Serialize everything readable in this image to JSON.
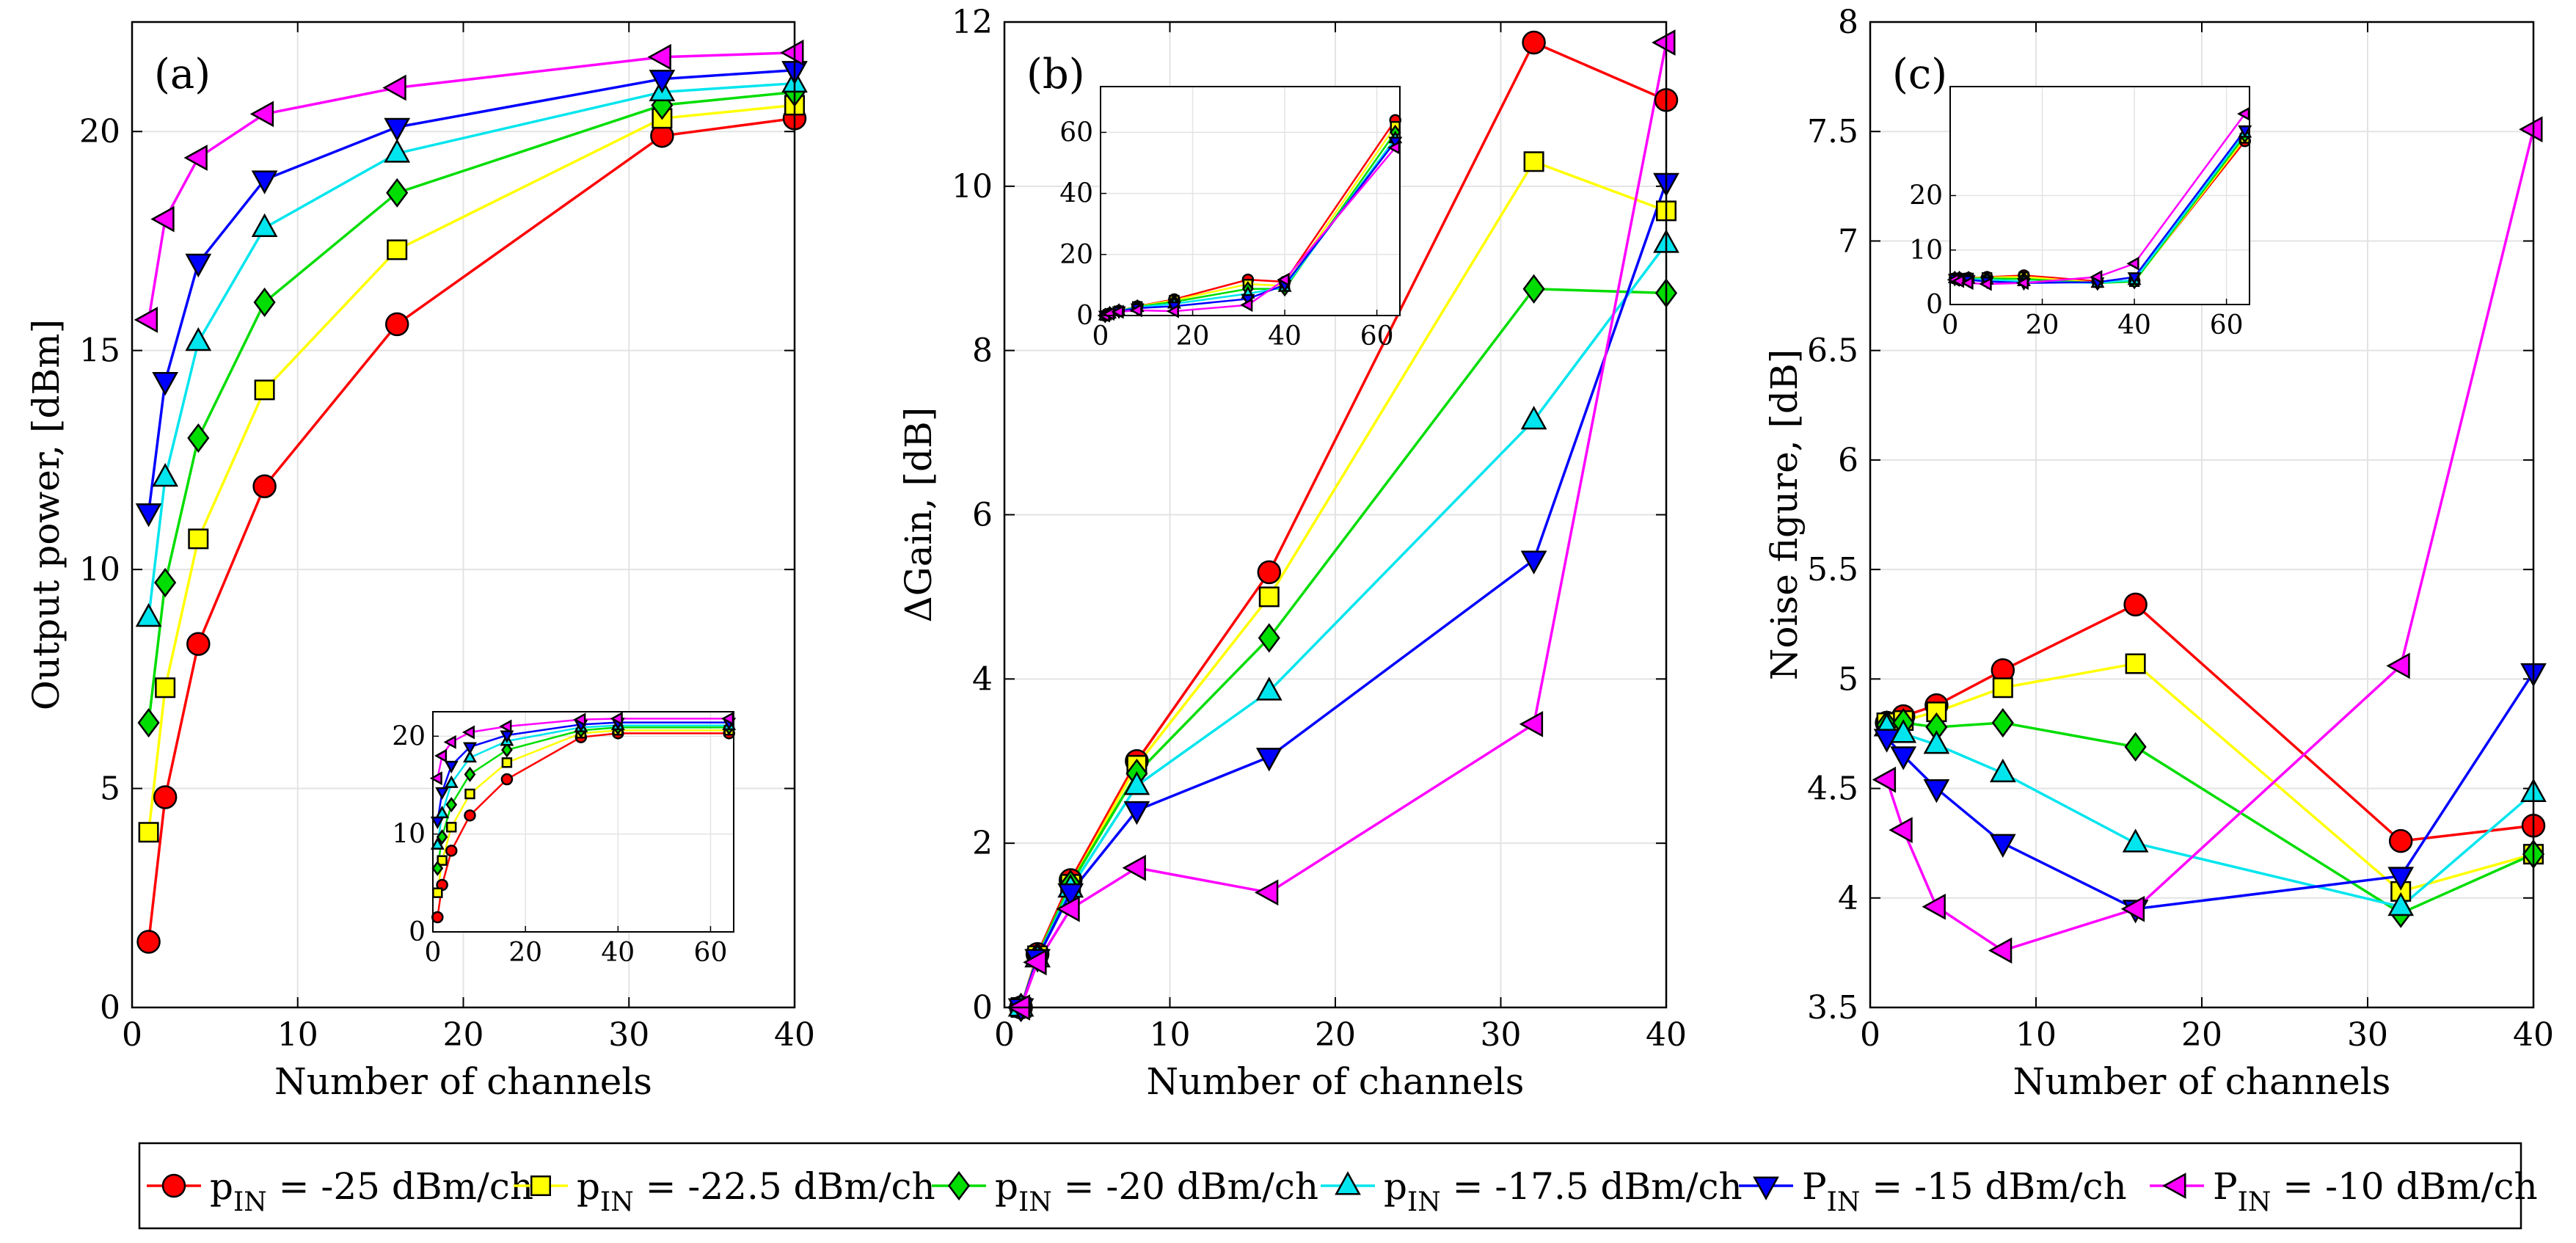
{
  "colors": {
    "s1": "#ff0000",
    "s2": "#ffff00",
    "s3": "#00dd00",
    "s4": "#00e5ee",
    "s5": "#0000ff",
    "s6": "#ff00ff"
  },
  "legend": [
    {
      "pre": "p",
      "sub": "IN",
      "post": " = -25 dBm/ch",
      "marker": "circle",
      "color": "#ff0000"
    },
    {
      "pre": "p",
      "sub": "IN",
      "post": " = -22.5 dBm/ch",
      "marker": "square",
      "color": "#ffff00"
    },
    {
      "pre": "p",
      "sub": "IN",
      "post": " = -20 dBm/ch",
      "marker": "diamond",
      "color": "#00dd00"
    },
    {
      "pre": "p",
      "sub": "IN",
      "post": " = -17.5 dBm/ch",
      "marker": "triangle-up",
      "color": "#00e5ee"
    },
    {
      "pre": "P",
      "sub": "IN",
      "post": " = -15 dBm/ch",
      "marker": "triangle-down",
      "color": "#0000ff"
    },
    {
      "pre": "P",
      "sub": "IN",
      "post": " = -10 dBm/ch",
      "marker": "triangle-left",
      "color": "#ff00ff"
    }
  ],
  "chart_data": [
    {
      "type": "line",
      "panel_label": "(a)",
      "xlabel": "Number of channels",
      "ylabel": "Output power, [dBm]",
      "xlim": [
        0,
        40
      ],
      "ylim": [
        0,
        22.5
      ],
      "xticks": [
        0,
        10,
        20,
        30,
        40
      ],
      "yticks": [
        0,
        5,
        10,
        15,
        20
      ],
      "grid": true,
      "x": [
        1,
        2,
        4,
        8,
        16,
        32,
        40
      ],
      "series": [
        {
          "name": "pIN = -25 dBm/ch",
          "marker": "circle",
          "values": [
            1.5,
            4.8,
            8.3,
            11.9,
            15.6,
            19.9,
            20.3
          ]
        },
        {
          "name": "pIN = -22.5 dBm/ch",
          "marker": "square",
          "values": [
            4.0,
            7.3,
            10.7,
            14.1,
            17.3,
            20.3,
            20.6
          ]
        },
        {
          "name": "pIN = -20 dBm/ch",
          "marker": "diamond",
          "values": [
            6.5,
            9.7,
            13.0,
            16.1,
            18.6,
            20.6,
            20.9
          ]
        },
        {
          "name": "pIN = -17.5 dBm/ch",
          "marker": "triangle-up",
          "values": [
            8.9,
            12.1,
            15.2,
            17.8,
            19.5,
            20.9,
            21.1
          ]
        },
        {
          "name": "PIN = -15 dBm/ch",
          "marker": "triangle-down",
          "values": [
            11.3,
            14.3,
            17.0,
            18.9,
            20.1,
            21.2,
            21.4
          ]
        },
        {
          "name": "PIN = -10 dBm/ch",
          "marker": "triangle-left",
          "values": [
            15.7,
            18.0,
            19.4,
            20.4,
            21.0,
            21.7,
            21.8
          ]
        }
      ],
      "inset": {
        "xlim": [
          0,
          65
        ],
        "ylim": [
          0,
          22.5
        ],
        "xticks": [
          0,
          20,
          40,
          60
        ],
        "yticks": [
          0,
          10,
          20
        ],
        "x": [
          1,
          2,
          4,
          8,
          16,
          32,
          40,
          64
        ],
        "series": [
          {
            "values": [
              1.5,
              4.8,
              8.3,
              11.9,
              15.6,
              19.9,
              20.3,
              20.3
            ]
          },
          {
            "values": [
              4.0,
              7.3,
              10.7,
              14.1,
              17.3,
              20.3,
              20.6,
              20.6
            ]
          },
          {
            "values": [
              6.5,
              9.7,
              13.0,
              16.1,
              18.6,
              20.6,
              20.9,
              20.9
            ]
          },
          {
            "values": [
              8.9,
              12.1,
              15.2,
              17.8,
              19.5,
              20.9,
              21.1,
              21.1
            ]
          },
          {
            "values": [
              11.3,
              14.3,
              17.0,
              18.9,
              20.1,
              21.2,
              21.4,
              21.4
            ]
          },
          {
            "values": [
              15.7,
              18.0,
              19.4,
              20.4,
              21.0,
              21.7,
              21.8,
              21.8
            ]
          }
        ]
      }
    },
    {
      "type": "line",
      "panel_label": "(b)",
      "xlabel": "Number of channels",
      "ylabel": "ΔGain, [dB]",
      "xlim": [
        0,
        40
      ],
      "ylim": [
        0,
        12
      ],
      "xticks": [
        0,
        10,
        20,
        30,
        40
      ],
      "yticks": [
        0,
        2,
        4,
        6,
        8,
        10,
        12
      ],
      "grid": true,
      "x": [
        1,
        2,
        4,
        8,
        16,
        32,
        40
      ],
      "series": [
        {
          "name": "pIN = -25 dBm/ch",
          "marker": "circle",
          "values": [
            0,
            0.65,
            1.55,
            3.0,
            5.3,
            11.75,
            11.05
          ]
        },
        {
          "name": "pIN = -22.5 dBm/ch",
          "marker": "square",
          "values": [
            0,
            0.63,
            1.5,
            2.95,
            5.0,
            10.3,
            9.7
          ]
        },
        {
          "name": "pIN = -20 dBm/ch",
          "marker": "diamond",
          "values": [
            0,
            0.62,
            1.5,
            2.85,
            4.5,
            8.75,
            8.7
          ]
        },
        {
          "name": "pIN = -17.5 dBm/ch",
          "marker": "triangle-up",
          "values": [
            0,
            0.6,
            1.45,
            2.7,
            3.85,
            7.15,
            9.3
          ]
        },
        {
          "name": "PIN = -15 dBm/ch",
          "marker": "triangle-down",
          "values": [
            0,
            0.6,
            1.4,
            2.4,
            3.05,
            5.45,
            10.05
          ]
        },
        {
          "name": "PIN = -10 dBm/ch",
          "marker": "triangle-left",
          "values": [
            0,
            0.55,
            1.2,
            1.7,
            1.4,
            3.45,
            11.75
          ]
        }
      ],
      "inset": {
        "xlim": [
          0,
          65
        ],
        "ylim": [
          0,
          75
        ],
        "xticks": [
          0,
          20,
          40,
          60
        ],
        "yticks": [
          0,
          20,
          40,
          60
        ],
        "x": [
          1,
          2,
          4,
          8,
          16,
          32,
          40,
          64
        ],
        "series": [
          {
            "values": [
              0,
              0.65,
              1.55,
              3.0,
              5.3,
              11.75,
              11.05,
              64
            ]
          },
          {
            "values": [
              0,
              0.63,
              1.5,
              2.95,
              5.0,
              10.3,
              9.7,
              62
            ]
          },
          {
            "values": [
              0,
              0.62,
              1.5,
              2.85,
              4.5,
              8.75,
              8.7,
              60
            ]
          },
          {
            "values": [
              0,
              0.6,
              1.45,
              2.7,
              3.85,
              7.15,
              9.3,
              58
            ]
          },
          {
            "values": [
              0,
              0.6,
              1.4,
              2.4,
              3.05,
              5.45,
              10.05,
              57
            ]
          },
          {
            "values": [
              0,
              0.55,
              1.2,
              1.7,
              1.4,
              3.45,
              11.75,
              55
            ]
          }
        ]
      }
    },
    {
      "type": "line",
      "panel_label": "(c)",
      "xlabel": "Number of channels",
      "ylabel": "Noise figure, [dB]",
      "xlim": [
        0,
        40
      ],
      "ylim": [
        3.5,
        8
      ],
      "xticks": [
        0,
        10,
        20,
        30,
        40
      ],
      "yticks": [
        3.5,
        4,
        4.5,
        5,
        5.5,
        6,
        6.5,
        7,
        7.5,
        8
      ],
      "grid": true,
      "x": [
        1,
        2,
        4,
        8,
        16,
        32,
        40
      ],
      "series": [
        {
          "name": "pIN = -25 dBm/ch",
          "marker": "circle",
          "values": [
            4.8,
            4.83,
            4.88,
            5.04,
            5.34,
            4.26,
            4.33
          ]
        },
        {
          "name": "pIN = -22.5 dBm/ch",
          "marker": "square",
          "values": [
            4.8,
            4.81,
            4.85,
            4.96,
            5.07,
            4.03,
            4.2
          ]
        },
        {
          "name": "pIN = -20 dBm/ch",
          "marker": "diamond",
          "values": [
            4.79,
            4.8,
            4.78,
            4.8,
            4.69,
            3.93,
            4.2
          ]
        },
        {
          "name": "pIN = -17.5 dBm/ch",
          "marker": "triangle-up",
          "values": [
            4.78,
            4.75,
            4.7,
            4.57,
            4.25,
            3.96,
            4.48
          ]
        },
        {
          "name": "PIN = -15 dBm/ch",
          "marker": "triangle-down",
          "values": [
            4.73,
            4.65,
            4.5,
            4.25,
            3.95,
            4.1,
            5.03
          ]
        },
        {
          "name": "PIN = -10 dBm/ch",
          "marker": "triangle-left",
          "values": [
            4.54,
            4.31,
            3.96,
            3.76,
            3.95,
            5.06,
            7.51
          ]
        }
      ],
      "inset": {
        "xlim": [
          0,
          65
        ],
        "ylim": [
          0,
          40
        ],
        "xticks": [
          0,
          20,
          40,
          60
        ],
        "yticks": [
          0,
          10,
          20
        ],
        "x": [
          1,
          2,
          4,
          8,
          16,
          32,
          40,
          64
        ],
        "series": [
          {
            "values": [
              4.8,
              4.83,
              4.88,
              5.04,
              5.34,
              4.26,
              4.33,
              30
            ]
          },
          {
            "values": [
              4.8,
              4.81,
              4.85,
              4.96,
              5.07,
              4.03,
              4.2,
              30.5
            ]
          },
          {
            "values": [
              4.79,
              4.8,
              4.78,
              4.8,
              4.69,
              3.93,
              4.2,
              31
            ]
          },
          {
            "values": [
              4.78,
              4.75,
              4.7,
              4.57,
              4.25,
              3.96,
              4.48,
              31.5
            ]
          },
          {
            "values": [
              4.73,
              4.65,
              4.5,
              4.25,
              3.95,
              4.1,
              5.03,
              32
            ]
          },
          {
            "values": [
              4.54,
              4.31,
              3.96,
              3.76,
              3.95,
              5.06,
              7.51,
              35
            ]
          }
        ]
      }
    }
  ]
}
